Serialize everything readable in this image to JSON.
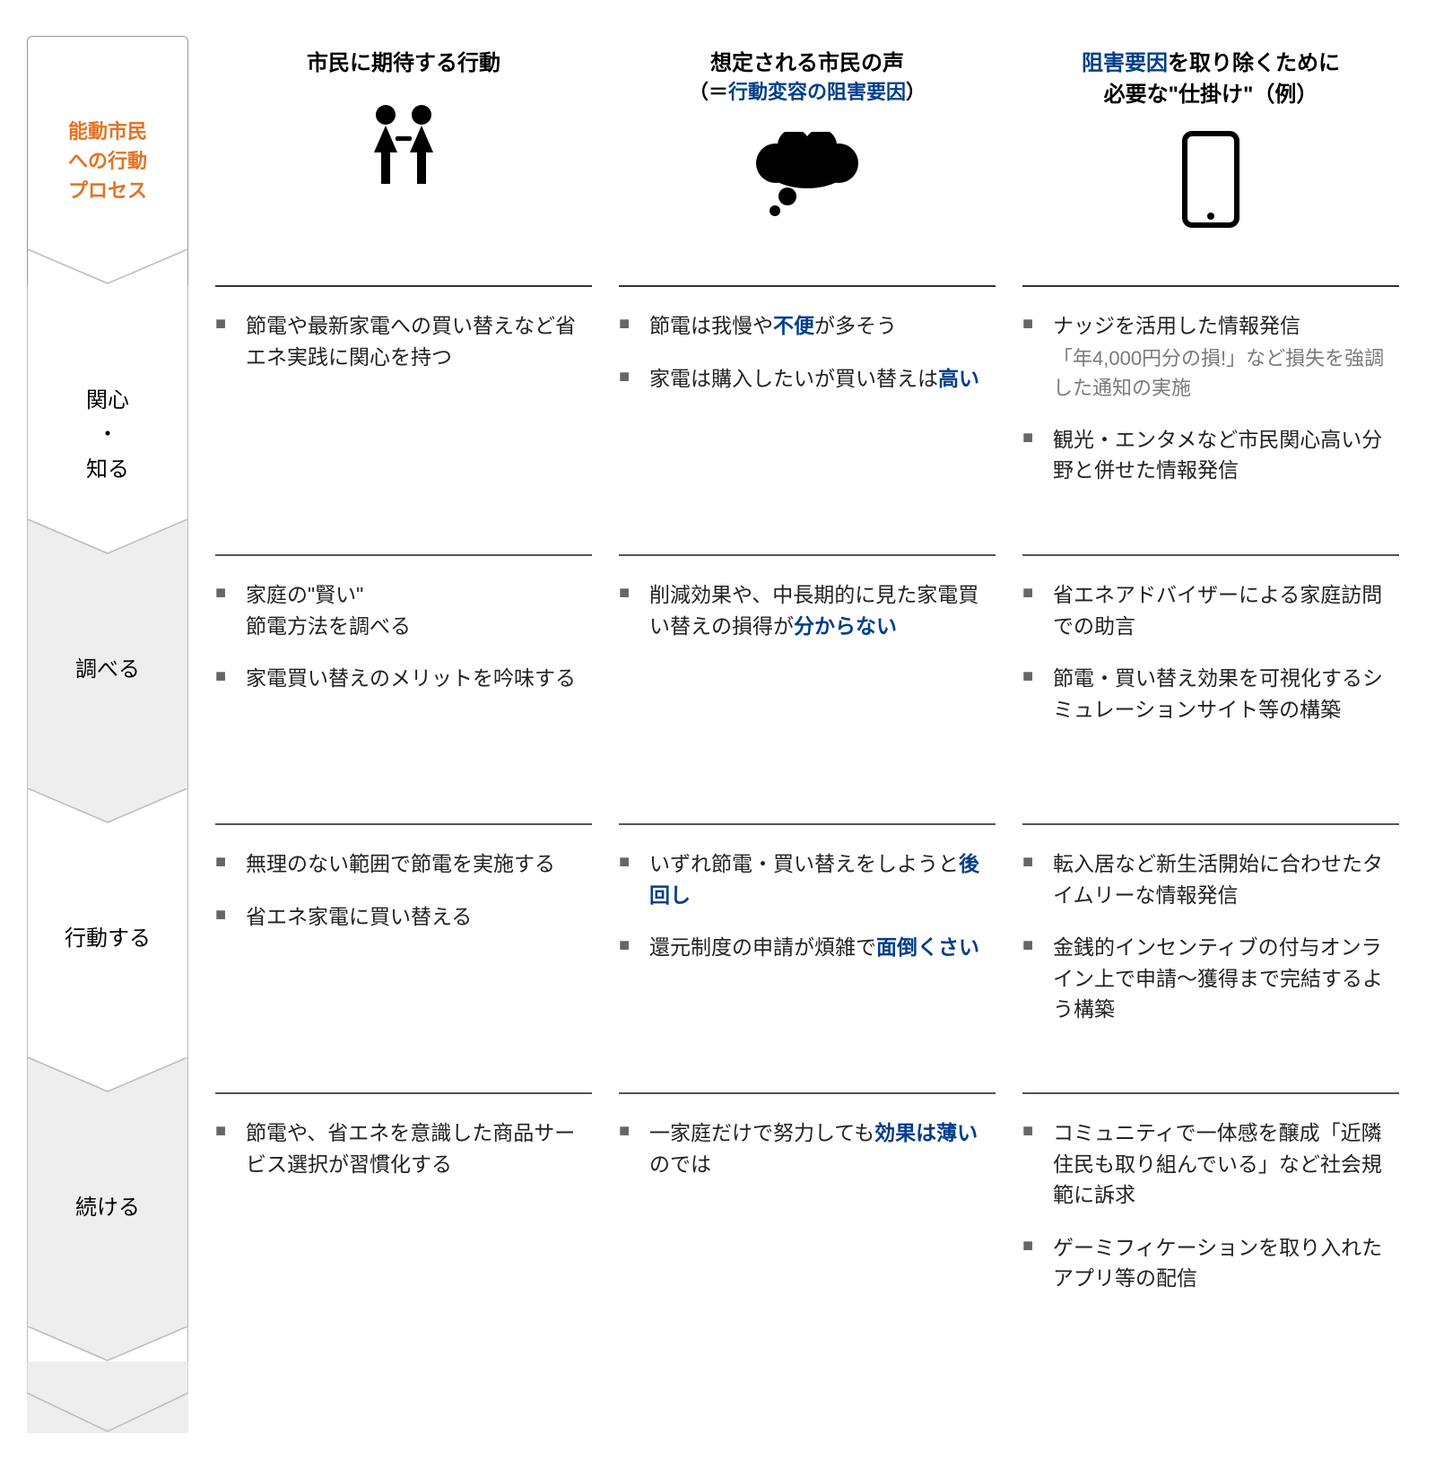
{
  "process_label": "能動市民\nへの行動\nプロセス",
  "columns": {
    "col1": {
      "title": "市民に期待する行動"
    },
    "col2": {
      "title_pre": "想定される市民の声",
      "title_sub_open": "（＝",
      "title_sub_blue": "行動変容の阻害要因",
      "title_sub_close": "）"
    },
    "col3": {
      "blue": "阻害要因",
      "rest1": "を取り除くために",
      "line2": "必要な\"仕掛け\"（例）"
    }
  },
  "stages": [
    {
      "label": "関心\n・\n知る",
      "alt": false
    },
    {
      "label": "調べる",
      "alt": true
    },
    {
      "label": "行動する",
      "alt": false
    },
    {
      "label": "続ける",
      "alt": true
    }
  ],
  "rows": [
    {
      "c1": [
        {
          "segs": [
            {
              "t": "節電や最新家電への買い替えなど省エネ実践に関心を持つ"
            }
          ]
        }
      ],
      "c2": [
        {
          "segs": [
            {
              "t": "節電は我慢や"
            },
            {
              "t": "不便",
              "e": true
            },
            {
              "t": "が多そう"
            }
          ]
        },
        {
          "segs": [
            {
              "t": "家電は購入したいが買い替えは"
            },
            {
              "t": "高い",
              "e": true
            }
          ]
        }
      ],
      "c3": [
        {
          "segs": [
            {
              "t": "ナッジを活用した情報発信"
            }
          ],
          "note": "「年4,000円分の損!」など損失を強調した通知の実施"
        },
        {
          "segs": [
            {
              "t": "観光・エンタメなど市民関心高い分野と併せた情報発信"
            }
          ]
        }
      ]
    },
    {
      "c1": [
        {
          "segs": [
            {
              "t": "家庭の\"賢い\"\n節電方法を調べる"
            }
          ]
        },
        {
          "segs": [
            {
              "t": "家電買い替えのメリットを吟味する"
            }
          ]
        }
      ],
      "c2": [
        {
          "segs": [
            {
              "t": "削減効果や、中長期的に見た家電買い替えの損得が"
            },
            {
              "t": "分からない",
              "e": true
            }
          ]
        }
      ],
      "c3": [
        {
          "segs": [
            {
              "t": "省エネアドバイザーによる家庭訪問での助言"
            }
          ]
        },
        {
          "segs": [
            {
              "t": "節電・買い替え効果を可視化するシミュレーションサイト等の構築"
            }
          ]
        }
      ]
    },
    {
      "c1": [
        {
          "segs": [
            {
              "t": "無理のない範囲で節電を実施する"
            }
          ]
        },
        {
          "segs": [
            {
              "t": "省エネ家電に買い替える"
            }
          ]
        }
      ],
      "c2": [
        {
          "segs": [
            {
              "t": "いずれ節電・買い替えをしようと"
            },
            {
              "t": "後回し",
              "e": true
            }
          ]
        },
        {
          "segs": [
            {
              "t": "還元制度の申請が煩雑で"
            },
            {
              "t": "面倒くさい",
              "e": true
            }
          ]
        }
      ],
      "c3": [
        {
          "segs": [
            {
              "t": "転入居など新生活開始に合わせたタイムリーな情報発信"
            }
          ]
        },
        {
          "segs": [
            {
              "t": "金銭的インセンティブの付与オンライン上で申請～獲得まで完結するよう構築"
            }
          ]
        }
      ]
    },
    {
      "c1": [
        {
          "segs": [
            {
              "t": "節電や、省エネを意識した商品サービス選択が習慣化する"
            }
          ]
        }
      ],
      "c2": [
        {
          "segs": [
            {
              "t": "一家庭だけで努力しても"
            },
            {
              "t": "効果は薄い",
              "e": true
            },
            {
              "t": "のでは"
            }
          ]
        }
      ],
      "c3": [
        {
          "segs": [
            {
              "t": "コミュニティで一体感を醸成「近隣住民も取り組んでいる」など社会規範に訴求"
            }
          ]
        },
        {
          "segs": [
            {
              "t": "ゲーミフィケーションを取り入れたアプリ等の配信"
            }
          ]
        }
      ]
    }
  ],
  "colors": {
    "orange": "#e37222",
    "blue": "#003e8a",
    "gray_bg": "#eeeeee",
    "chev_fill_light": "#ffffff",
    "chev_fill_dark": "#eeeeee",
    "chev_stroke": "#bbbbbb"
  }
}
